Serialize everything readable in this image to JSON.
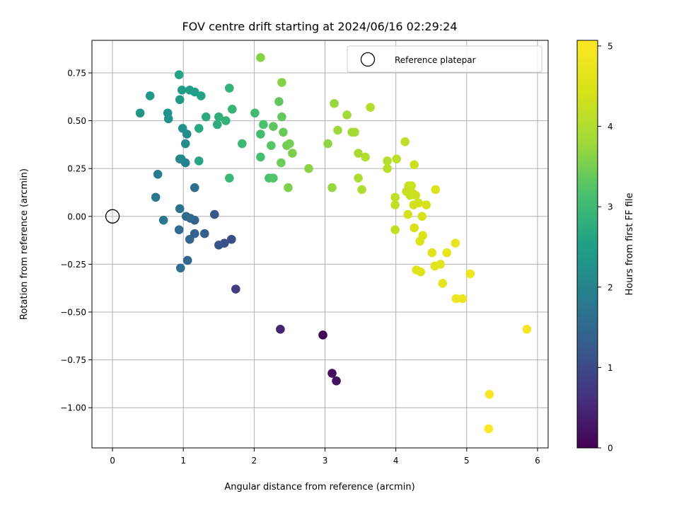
{
  "chart_data": {
    "type": "scatter",
    "title": "FOV centre drift starting at 2024/06/16 02:29:24",
    "xlabel": "Angular distance from reference (arcmin)",
    "ylabel": "Rotation from reference (arcmin)",
    "xlim": [
      -0.29,
      6.15
    ],
    "ylim": [
      -1.21,
      0.92
    ],
    "xticks": [
      0,
      1,
      2,
      3,
      4,
      5,
      6
    ],
    "xtick_labels": [
      "0",
      "1",
      "2",
      "3",
      "4",
      "5",
      "6"
    ],
    "yticks": [
      0.75,
      0.5,
      0.25,
      0.0,
      -0.25,
      -0.5,
      -0.75,
      -1.0
    ],
    "ytick_labels": [
      "0.75",
      "0.50",
      "0.25",
      "0.00",
      "−0.25",
      "−0.50",
      "−0.75",
      "−1.00"
    ],
    "grid": true,
    "legend": {
      "label": "Reference platepar",
      "placement": "top-right",
      "marker": "open-circle"
    },
    "reference_point": {
      "x": 0,
      "y": 0
    },
    "colorbar": {
      "label": "Hours from first FF file",
      "colormap": "viridis",
      "range": [
        0,
        5.07
      ],
      "ticks": [
        0,
        1,
        2,
        3,
        4,
        5
      ],
      "tick_labels": [
        "0",
        "1",
        "2",
        "3",
        "4",
        "5"
      ]
    },
    "series": [
      {
        "points": [
          [
            2.97,
            -0.62,
            0.05
          ],
          [
            3.1,
            -0.82,
            0.18
          ],
          [
            3.16,
            -0.86,
            0.22
          ],
          [
            2.37,
            -0.59,
            0.45
          ],
          [
            1.74,
            -0.38,
            0.8
          ],
          [
            1.68,
            -0.12,
            1.05
          ],
          [
            1.58,
            -0.14,
            1.1
          ],
          [
            1.5,
            -0.15,
            1.15
          ],
          [
            1.44,
            0.01,
            1.2
          ],
          [
            1.3,
            -0.09,
            1.3
          ],
          [
            1.16,
            -0.09,
            1.35
          ],
          [
            1.16,
            -0.02,
            1.4
          ],
          [
            1.09,
            -0.12,
            1.42
          ],
          [
            1.06,
            -0.23,
            1.45
          ],
          [
            1.1,
            -0.01,
            1.48
          ],
          [
            1.04,
            0.0,
            1.52
          ],
          [
            0.94,
            -0.07,
            1.55
          ],
          [
            0.96,
            -0.27,
            1.6
          ],
          [
            1.16,
            0.15,
            1.62
          ],
          [
            0.95,
            0.04,
            1.68
          ],
          [
            0.72,
            -0.02,
            1.72
          ],
          [
            0.61,
            0.1,
            1.78
          ],
          [
            0.64,
            0.22,
            1.85
          ],
          [
            1.03,
            0.28,
            1.92
          ],
          [
            0.97,
            0.3,
            2.0
          ],
          [
            0.95,
            0.3,
            2.05
          ],
          [
            1.03,
            0.38,
            2.1
          ],
          [
            1.05,
            0.43,
            2.15
          ],
          [
            0.99,
            0.46,
            2.2
          ],
          [
            0.79,
            0.51,
            2.25
          ],
          [
            0.78,
            0.54,
            2.28
          ],
          [
            0.39,
            0.54,
            2.32
          ],
          [
            0.53,
            0.63,
            2.36
          ],
          [
            0.95,
            0.61,
            2.4
          ],
          [
            0.98,
            0.66,
            2.45
          ],
          [
            1.09,
            0.66,
            2.48
          ],
          [
            1.16,
            0.65,
            2.52
          ],
          [
            1.25,
            0.63,
            2.56
          ],
          [
            0.94,
            0.74,
            2.6
          ],
          [
            1.22,
            0.29,
            2.64
          ],
          [
            1.22,
            0.46,
            2.68
          ],
          [
            1.32,
            0.52,
            2.72
          ],
          [
            1.48,
            0.48,
            2.76
          ],
          [
            1.5,
            0.52,
            2.8
          ],
          [
            1.6,
            0.5,
            2.84
          ],
          [
            1.65,
            0.67,
            2.88
          ],
          [
            1.69,
            0.56,
            2.92
          ],
          [
            1.65,
            0.2,
            2.96
          ],
          [
            1.83,
            0.38,
            3.0
          ],
          [
            2.01,
            0.54,
            3.03
          ],
          [
            2.09,
            0.43,
            3.06
          ],
          [
            2.09,
            0.31,
            3.1
          ],
          [
            2.13,
            0.48,
            3.14
          ],
          [
            2.21,
            0.2,
            3.18
          ],
          [
            2.27,
            0.2,
            3.22
          ],
          [
            2.24,
            0.37,
            3.26
          ],
          [
            2.27,
            0.47,
            3.3
          ],
          [
            2.35,
            0.6,
            3.33
          ],
          [
            2.39,
            0.52,
            3.36
          ],
          [
            2.41,
            0.44,
            3.4
          ],
          [
            2.38,
            0.28,
            3.43
          ],
          [
            2.46,
            0.37,
            3.46
          ],
          [
            2.5,
            0.38,
            3.5
          ],
          [
            2.54,
            0.33,
            3.53
          ],
          [
            2.48,
            0.15,
            3.56
          ],
          [
            2.39,
            0.7,
            3.59
          ],
          [
            2.09,
            0.83,
            3.62
          ],
          [
            2.77,
            0.25,
            3.65
          ],
          [
            3.04,
            0.38,
            3.68
          ],
          [
            3.1,
            0.15,
            3.72
          ],
          [
            3.13,
            0.59,
            3.75
          ],
          [
            3.18,
            0.45,
            3.78
          ],
          [
            3.31,
            0.53,
            3.81
          ],
          [
            3.38,
            0.44,
            3.84
          ],
          [
            3.42,
            0.44,
            3.87
          ],
          [
            3.47,
            0.33,
            3.9
          ],
          [
            3.47,
            0.2,
            3.93
          ],
          [
            3.52,
            0.14,
            3.96
          ],
          [
            3.57,
            0.31,
            3.99
          ],
          [
            3.64,
            0.57,
            4.02
          ],
          [
            3.88,
            0.29,
            4.05
          ],
          [
            3.88,
            0.25,
            4.08
          ],
          [
            4.01,
            0.3,
            4.11
          ],
          [
            4.13,
            0.39,
            4.14
          ],
          [
            3.99,
            0.1,
            4.16
          ],
          [
            3.99,
            0.06,
            4.18
          ],
          [
            3.99,
            -0.07,
            4.2
          ],
          [
            4.15,
            0.13,
            4.22
          ],
          [
            4.18,
            0.16,
            4.24
          ],
          [
            4.2,
            0.11,
            4.26
          ],
          [
            4.22,
            0.16,
            4.28
          ],
          [
            4.26,
            0.27,
            4.3
          ],
          [
            4.24,
            0.12,
            4.32
          ],
          [
            4.28,
            0.11,
            4.34
          ],
          [
            4.25,
            0.06,
            4.36
          ],
          [
            4.32,
            0.07,
            4.38
          ],
          [
            4.17,
            0.01,
            4.4
          ],
          [
            4.37,
            0.0,
            4.42
          ],
          [
            4.43,
            0.06,
            4.44
          ],
          [
            4.26,
            -0.06,
            4.46
          ],
          [
            4.38,
            -0.1,
            4.48
          ],
          [
            4.34,
            -0.13,
            4.5
          ],
          [
            4.56,
            0.14,
            4.52
          ],
          [
            4.29,
            -0.28,
            4.55
          ],
          [
            4.35,
            -0.29,
            4.57
          ],
          [
            4.51,
            -0.19,
            4.6
          ],
          [
            4.55,
            -0.26,
            4.62
          ],
          [
            4.63,
            -0.25,
            4.65
          ],
          [
            4.66,
            -0.35,
            4.68
          ],
          [
            4.72,
            -0.19,
            4.71
          ],
          [
            4.84,
            -0.14,
            4.74
          ],
          [
            4.85,
            -0.43,
            4.77
          ],
          [
            4.94,
            -0.43,
            4.8
          ],
          [
            5.05,
            -0.3,
            4.85
          ],
          [
            5.85,
            -0.59,
            4.92
          ],
          [
            5.32,
            -0.93,
            5.0
          ],
          [
            5.31,
            -1.11,
            5.05
          ]
        ]
      }
    ],
    "point_fields": [
      "x",
      "y",
      "hours"
    ]
  }
}
